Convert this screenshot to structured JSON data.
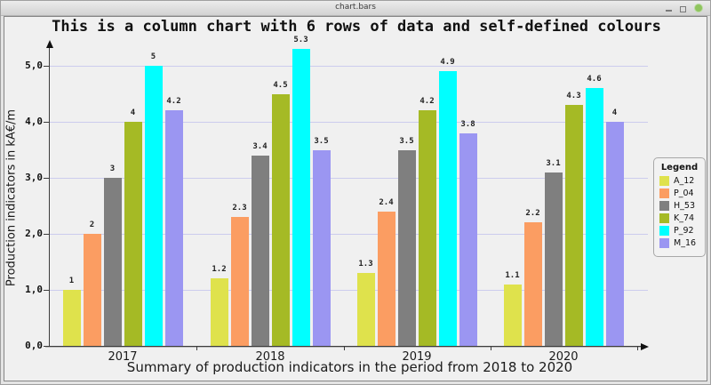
{
  "window": {
    "title": "chart.bars"
  },
  "chart": {
    "title": "This is a column chart with 6 rows of data and self-defined colours",
    "y_axis_label": "Production indicators in kA€/m",
    "x_axis_label": "Summary of production indicators in the period from 2018 to 2020"
  },
  "legend": {
    "title": "Legend"
  },
  "chart_data": {
    "type": "bar",
    "title": "This is a column chart with 6 rows of data and self-defined colours",
    "xlabel": "Summary of production indicators in the period from 2018 to 2020",
    "ylabel": "Production indicators in kA€/m",
    "categories": [
      "2017",
      "2018",
      "2019",
      "2020"
    ],
    "series": [
      {
        "name": "A_12",
        "color": "#dfe24c",
        "values": [
          1,
          1.2,
          1.3,
          1.1
        ]
      },
      {
        "name": "P_04",
        "color": "#fb9d62",
        "values": [
          2,
          2.3,
          2.4,
          2.2
        ]
      },
      {
        "name": "H_53",
        "color": "#7f7f7f",
        "values": [
          3,
          3.4,
          3.5,
          3.1
        ]
      },
      {
        "name": "K_74",
        "color": "#a5ba25",
        "values": [
          4,
          4.5,
          4.2,
          4.3
        ]
      },
      {
        "name": "P_92",
        "color": "#00ffff",
        "values": [
          5,
          5.3,
          4.9,
          4.6
        ]
      },
      {
        "name": "M_16",
        "color": "#9b96f2",
        "values": [
          4.2,
          3.5,
          3.8,
          4
        ]
      }
    ],
    "y_tick_labels": [
      "0,0",
      "1,0",
      "2,0",
      "3,0",
      "4,0",
      "5,0"
    ],
    "ylim": [
      0,
      5.5
    ],
    "grid": true,
    "legend_position": "right",
    "decimal_separator_axis": ",",
    "decimal_separator_values": "."
  }
}
